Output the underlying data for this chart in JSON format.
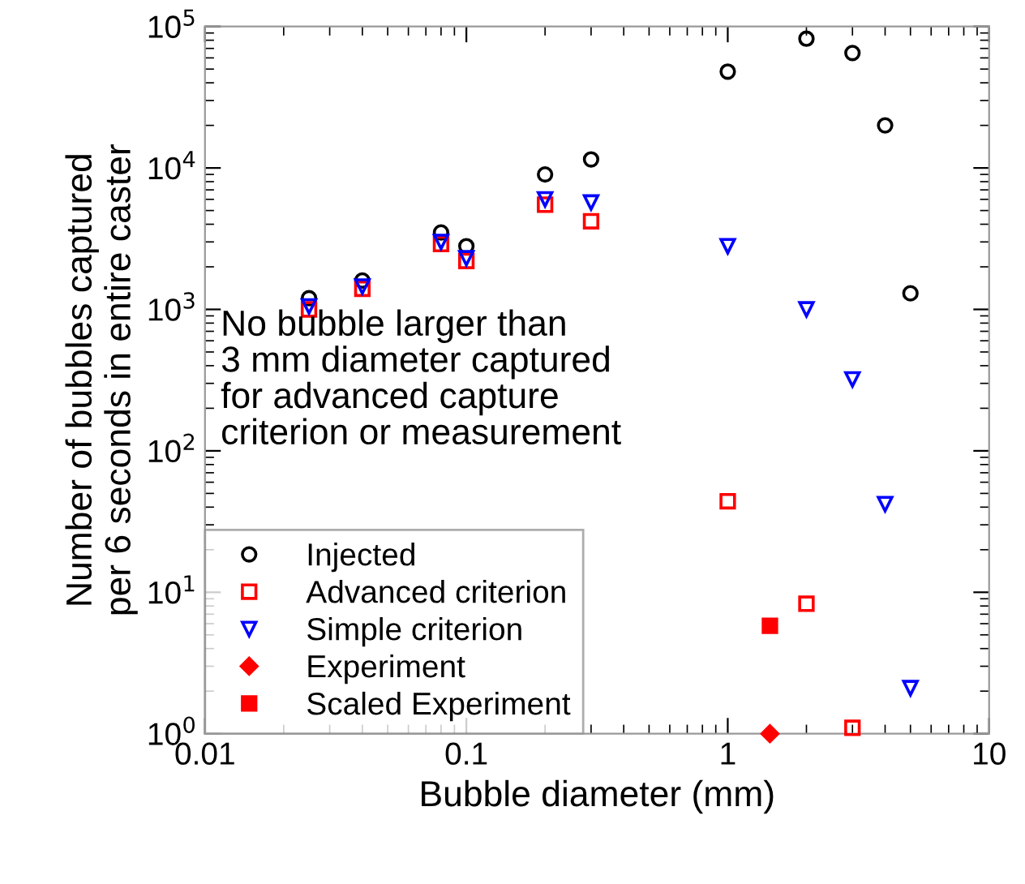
{
  "chart_data": {
    "type": "scatter",
    "xlabel": "Bubble diameter (mm)",
    "ylabel": "Number of bubbles captured\nper 6 seconds in entire caster",
    "log": "xy",
    "xlim": [
      0.01,
      10
    ],
    "ylim": [
      1,
      100000
    ],
    "xticks": [
      0.01,
      0.1,
      1,
      10
    ],
    "yticks": [
      {
        "value": 1,
        "label": "10$^{0}$"
      },
      {
        "value": 10,
        "label": "10$^{1}$"
      },
      {
        "value": 100,
        "label": "10$^{2}$"
      },
      {
        "value": 1000,
        "label": "10$^{3}$"
      },
      {
        "value": 10000,
        "label": "10$^{4}$"
      },
      {
        "value": 100000,
        "label": "10$^{5}$"
      }
    ],
    "grid": false,
    "legend": "bottom left",
    "annotations": [
      "No bubble larger than\n3 mm diameter captured\nfor advanced capture\ncriterion or measurement"
    ],
    "series": [
      {
        "name": "Injected",
        "color": "#000000",
        "marker": "circle",
        "x": [
          0.025,
          0.04,
          0.08,
          0.1,
          0.2,
          0.3,
          1,
          2,
          3,
          4,
          5
        ],
        "values": [
          1200,
          1600,
          3500,
          2800,
          9000,
          11500,
          48000,
          82000,
          65000,
          20000,
          1300
        ]
      },
      {
        "name": "Advanced criterion",
        "color": "#ff0000",
        "marker": "square",
        "x": [
          0.025,
          0.04,
          0.08,
          0.1,
          0.2,
          0.3,
          1,
          2,
          3
        ],
        "values": [
          1000,
          1400,
          2900,
          2200,
          5500,
          4200,
          44,
          8.3,
          1.1
        ]
      },
      {
        "name": "Simple criterion",
        "color": "#0000ff",
        "marker": "triangle",
        "x": [
          0.025,
          0.04,
          0.08,
          0.1,
          0.2,
          0.3,
          1,
          2,
          3,
          4,
          5
        ],
        "values": [
          1050,
          1450,
          3000,
          2300,
          6000,
          5700,
          2800,
          1000,
          320,
          42,
          2.1
        ]
      },
      {
        "name": "Experiment",
        "color": "#ff0000",
        "marker": "diamond",
        "x": [
          1.45
        ],
        "values": [
          1.0
        ]
      },
      {
        "name": "Scaled Experiment",
        "color": "#ff0000",
        "marker": "square",
        "x": [
          1.45
        ],
        "values": [
          5.8
        ]
      }
    ]
  }
}
